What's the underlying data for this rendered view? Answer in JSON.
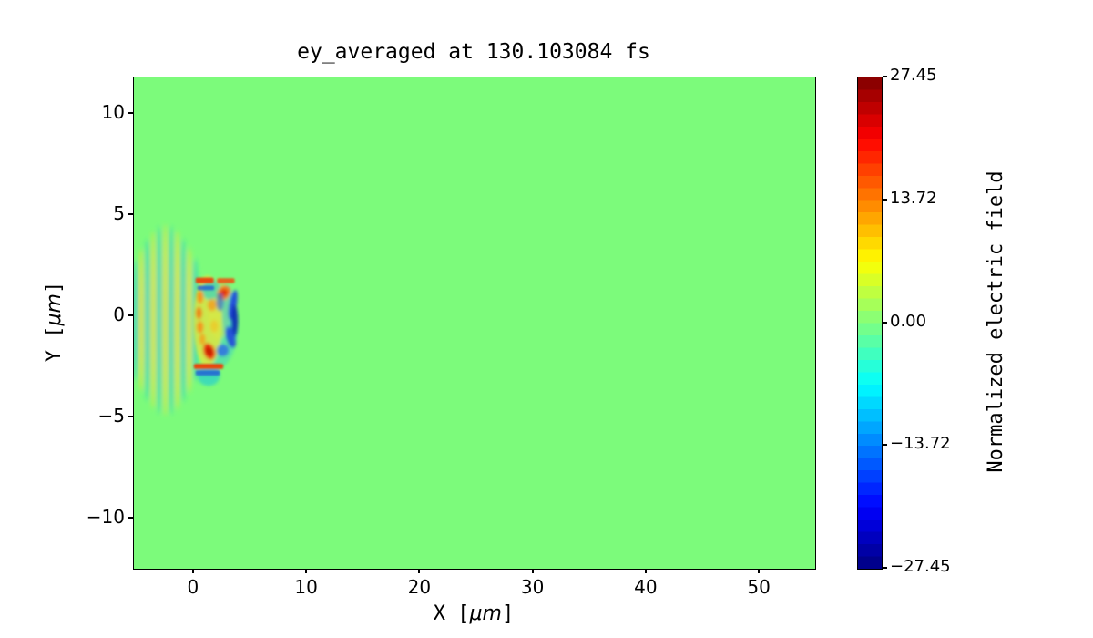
{
  "title": "ey_averaged at 130.103084 fs",
  "axes": {
    "xlabel": {
      "pre": "X [",
      "mu": "μm",
      "post": "]"
    },
    "ylabel": {
      "pre": "Y [",
      "mu": "μm",
      "post": "]"
    },
    "xticks": [
      0,
      10,
      20,
      30,
      40,
      50
    ],
    "xtick_labels": [
      "0",
      "10",
      "20",
      "30",
      "40",
      "50"
    ],
    "yticks": [
      10,
      5,
      0,
      -5,
      -10
    ],
    "ytick_labels": [
      "10",
      "5",
      "0",
      "−5",
      "−10"
    ]
  },
  "colorbar": {
    "label": "Normalized electric field",
    "ticks": [
      27.45,
      13.72,
      0.0,
      -13.72,
      -27.45
    ],
    "tick_labels": [
      "27.45",
      "13.72",
      "0.00",
      "−13.72",
      "−27.45"
    ],
    "levels": 40,
    "colormap": "jet"
  },
  "colors": {
    "plot_background": "#7cfb7b",
    "spine": "#000000",
    "text": "#000000",
    "figure_background": "#ffffff"
  },
  "chart_data": {
    "type": "heatmap",
    "title": "ey_averaged at 130.103084 fs",
    "xlabel": "X [μm]",
    "ylabel": "Y [μm]",
    "colorbar_label": "Normalized electric field",
    "colormap": "jet",
    "grid": false,
    "xlim": [
      -5.3,
      54.9
    ],
    "ylim": [
      -12.5,
      11.8
    ],
    "clim": [
      -27.45,
      27.45
    ],
    "xticks": [
      0,
      10,
      20,
      30,
      40,
      50
    ],
    "yticks": [
      10,
      5,
      0,
      -5,
      -10
    ],
    "colorbar_ticks": [
      27.45,
      13.72,
      0.0,
      -13.72,
      -27.45
    ],
    "background_value": 0.0,
    "description": "2D map of the averaged Ey field at t = 130.103084 fs. Field is ~0 (light green) everywhere except a laser-plasma structure on the left: vertical oscillation stripes (alternating yellow/cyan, wavelength ~1 μm) between x ≈ -5.3 and 0.5 μm with |y| ≲ 4.5 μm, driving a nonlinear bubble structure between x ≈ 0 and 4.2 μm, |y| ≲ 3 μm containing strong positive (red/orange, up to ~+27) and negative (blue, down to ~-27) field spots.",
    "field_features": {
      "laser_stripes": {
        "x_start": -5.15,
        "spacing": 0.525,
        "count": 11,
        "center_y": -0.2,
        "stripe_halfwidth_um": 0.27,
        "envelope": {
          "amp": 4.5,
          "x0": -2.5,
          "width": 3.8,
          "base": 0.25
        },
        "colors": [
          "#2bd1c1",
          "#e3e53c"
        ]
      },
      "bubble_blobs": [
        {
          "cx": 2.0,
          "cy": -0.4,
          "rx": 1.9,
          "ry": 2.2,
          "rot": 0,
          "c": "#3ecfc4",
          "o": 0.55
        },
        {
          "cx": 1.2,
          "cy": -0.25,
          "rx": 1.25,
          "ry": 2.25,
          "rot": 0,
          "c": "#dfe73e",
          "o": 0.85
        },
        {
          "cx": 2.2,
          "cy": 0.35,
          "rx": 1.0,
          "ry": 1.5,
          "rot": 0,
          "c": "#d9e843",
          "o": 0.6
        },
        {
          "cx": 1.5,
          "cy": 1.3,
          "rx": 0.8,
          "ry": 0.5,
          "rot": -15,
          "c": "#2fd4c4",
          "o": 0.7
        },
        {
          "cx": 1.3,
          "cy": -2.95,
          "rx": 1.0,
          "ry": 0.5,
          "rot": 0,
          "c": "#2fd4c4",
          "o": 0.8
        },
        {
          "cx": 3.0,
          "cy": 0.2,
          "rx": 0.5,
          "ry": 1.3,
          "rot": 0,
          "c": "#38c8da",
          "o": 0.5
        },
        {
          "cx": 0.55,
          "cy": 0.95,
          "rx": 0.3,
          "ry": 0.33,
          "rot": 0,
          "c": "#f59318",
          "o": 0.95
        },
        {
          "cx": 0.45,
          "cy": 0.15,
          "rx": 0.28,
          "ry": 0.3,
          "rot": 0,
          "c": "#f07b14",
          "o": 0.9
        },
        {
          "cx": 0.55,
          "cy": -0.55,
          "rx": 0.3,
          "ry": 0.3,
          "rot": 0,
          "c": "#f59318",
          "o": 0.95
        },
        {
          "cx": 0.75,
          "cy": -1.15,
          "rx": 0.28,
          "ry": 0.28,
          "rot": 0,
          "c": "#efa81e",
          "o": 0.9
        },
        {
          "cx": 1.6,
          "cy": 0.55,
          "rx": 0.4,
          "ry": 0.3,
          "rot": 0,
          "c": "#f0a020",
          "o": 0.85
        },
        {
          "cx": 1.8,
          "cy": -0.5,
          "rx": 0.35,
          "ry": 0.3,
          "rot": 0,
          "c": "#ecc929",
          "o": 0.8
        },
        {
          "cx": 1.35,
          "cy": -1.75,
          "rx": 0.5,
          "ry": 0.42,
          "rot": 20,
          "c": "#e9350f",
          "o": 1
        },
        {
          "cx": 1.35,
          "cy": -1.75,
          "rx": 0.26,
          "ry": 0.2,
          "rot": 20,
          "c": "#c21a00",
          "o": 1
        },
        {
          "cx": 2.65,
          "cy": 1.15,
          "rx": 0.55,
          "ry": 0.38,
          "rot": -35,
          "c": "#f07814",
          "o": 1
        },
        {
          "cx": 2.65,
          "cy": 1.15,
          "rx": 0.3,
          "ry": 0.18,
          "rot": -35,
          "c": "#df2d08",
          "o": 1
        },
        {
          "cx": 2.3,
          "cy": 0.7,
          "rx": 0.33,
          "ry": 0.45,
          "rot": 0,
          "c": "#2a62e0",
          "o": 0.65
        },
        {
          "cx": 3.45,
          "cy": 0.55,
          "rx": 0.33,
          "ry": 0.75,
          "rot": -10,
          "c": "#1f49dc",
          "o": 0.95
        },
        {
          "cx": 3.6,
          "cy": -0.25,
          "rx": 0.3,
          "ry": 0.8,
          "rot": 0,
          "c": "#102cb4",
          "o": 0.95
        },
        {
          "cx": 3.25,
          "cy": -1.05,
          "rx": 0.4,
          "ry": 0.55,
          "rot": 15,
          "c": "#1f49dc",
          "o": 0.9
        },
        {
          "cx": 2.55,
          "cy": -1.7,
          "rx": 0.55,
          "ry": 0.3,
          "rot": 25,
          "c": "#2e6ee4",
          "o": 0.85
        }
      ],
      "sheath_dashes": [
        {
          "x1": 0.15,
          "x2": 1.75,
          "y1": 1.62,
          "y2": 1.9,
          "c": "#e8470f",
          "o": 1
        },
        {
          "x1": 2.05,
          "x2": 3.6,
          "y1": 1.62,
          "y2": 1.87,
          "c": "#ea5a14",
          "o": 0.95
        },
        {
          "x1": 0.3,
          "x2": 1.8,
          "y1": 1.28,
          "y2": 1.5,
          "c": "#2058d8",
          "o": 0.8
        },
        {
          "x1": 0.0,
          "x2": 2.6,
          "y1": -2.62,
          "y2": -2.36,
          "c": "#e8470f",
          "o": 1
        },
        {
          "x1": 0.15,
          "x2": 2.3,
          "y1": -2.94,
          "y2": -2.68,
          "c": "#2058d8",
          "o": 0.8
        }
      ]
    }
  }
}
